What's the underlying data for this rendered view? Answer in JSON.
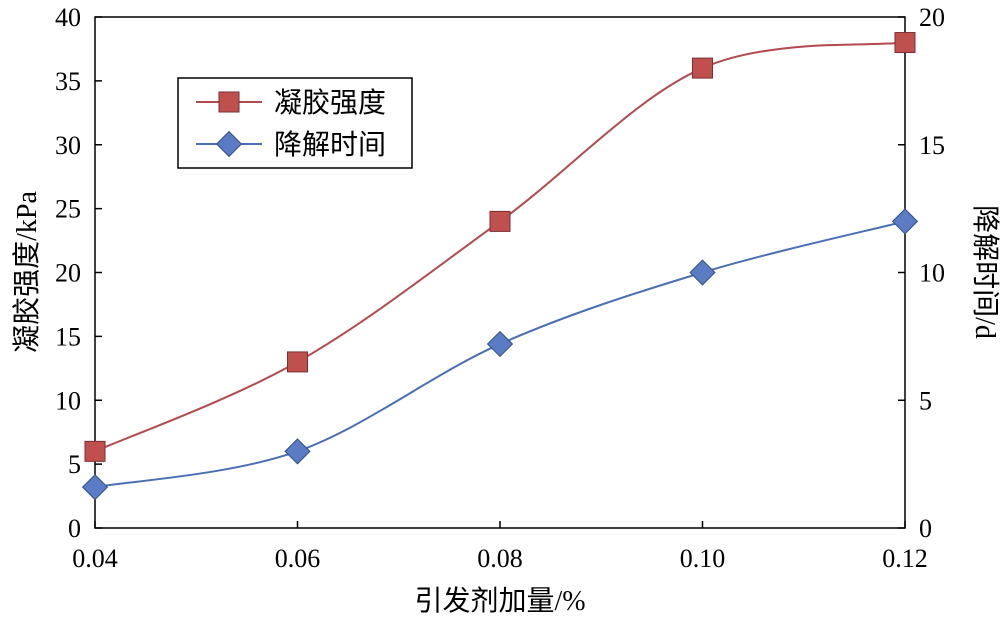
{
  "chart_data": {
    "type": "line",
    "x": [
      0.04,
      0.06,
      0.08,
      0.1,
      0.12
    ],
    "xtick_labels": [
      "0.04",
      "0.06",
      "0.08",
      "0.10",
      "0.12"
    ],
    "xlabel": "引发剂加量/%",
    "ylabel_left": "凝胶强度/kPa",
    "ylabel_right": "降解时间/d",
    "xlim": [
      0.04,
      0.12
    ],
    "ylim_left": [
      0,
      40
    ],
    "ylim_right": [
      0,
      20
    ],
    "yticks_left": [
      0,
      5,
      10,
      15,
      20,
      25,
      30,
      35,
      40
    ],
    "yticks_right": [
      0,
      5,
      10,
      15,
      20
    ],
    "grid": false,
    "legend_position": "top-left",
    "series": [
      {
        "name": "凝胶强度",
        "axis": "left",
        "marker": "square",
        "color": "#B24A4F",
        "marker_color": "#C0504D",
        "values": [
          6,
          13,
          24,
          36,
          38
        ]
      },
      {
        "name": "降解时间",
        "axis": "right",
        "marker": "diamond",
        "color": "#4A6FB5",
        "marker_color": "#5B7CC4",
        "values": [
          1.6,
          3.0,
          7.2,
          10.0,
          12.0
        ]
      }
    ]
  }
}
